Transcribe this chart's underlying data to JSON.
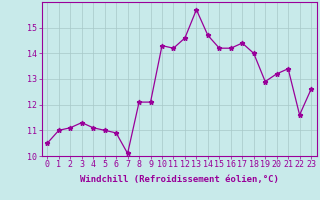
{
  "x": [
    0,
    1,
    2,
    3,
    4,
    5,
    6,
    7,
    8,
    9,
    10,
    11,
    12,
    13,
    14,
    15,
    16,
    17,
    18,
    19,
    20,
    21,
    22,
    23
  ],
  "y": [
    10.5,
    11.0,
    11.1,
    11.3,
    11.1,
    11.0,
    10.9,
    10.1,
    12.1,
    12.1,
    14.3,
    14.2,
    14.6,
    15.7,
    14.7,
    14.2,
    14.2,
    14.4,
    14.0,
    12.9,
    13.2,
    13.4,
    11.6,
    12.6
  ],
  "ylim": [
    10,
    16
  ],
  "yticks": [
    10,
    11,
    12,
    13,
    14,
    15
  ],
  "xticks": [
    0,
    1,
    2,
    3,
    4,
    5,
    6,
    7,
    8,
    9,
    10,
    11,
    12,
    13,
    14,
    15,
    16,
    17,
    18,
    19,
    20,
    21,
    22,
    23
  ],
  "xlabel": "Windchill (Refroidissement éolien,°C)",
  "line_color": "#990099",
  "marker": "*",
  "marker_size": 3.5,
  "line_width": 0.9,
  "bg_color": "#c8eaea",
  "grid_color": "#a8c8c8",
  "tick_color": "#990099",
  "label_color": "#990099",
  "xlabel_fontsize": 6.5,
  "tick_fontsize": 6.0
}
